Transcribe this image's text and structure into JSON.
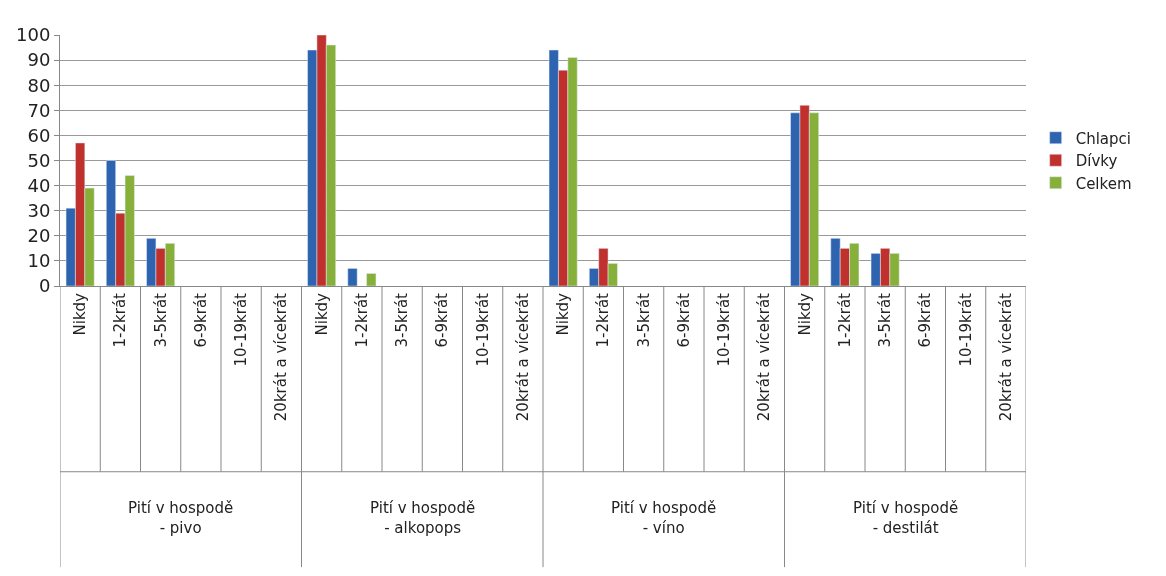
{
  "chart_data": {
    "type": "bar",
    "categories": [
      "Nikdy",
      "1-2krát",
      "3-5krát",
      "6-9krát",
      "10-19krát",
      "20krát a vícekrát",
      "Nikdy",
      "1-2krát",
      "3-5krát",
      "6-9krát",
      "10-19krát",
      "20krát a vícekrát",
      "Nikdy",
      "1-2krát",
      "3-5krát",
      "6-9krát",
      "10-19krát",
      "20krát a vícekrát",
      "Nikdy",
      "1-2krát",
      "3-5krát",
      "6-9krát",
      "10-19krát",
      "20krát a vícekrát"
    ],
    "series": [
      {
        "name": "Chlapci",
        "color": "#2e63b0",
        "values": [
          31,
          50,
          19,
          null,
          null,
          null,
          94,
          7,
          null,
          null,
          null,
          null,
          94,
          7,
          null,
          null,
          null,
          null,
          69,
          19,
          13,
          null,
          null,
          null
        ]
      },
      {
        "name": "Dívky",
        "color": "#c0312e",
        "values": [
          57,
          29,
          15,
          null,
          null,
          null,
          100,
          null,
          null,
          null,
          null,
          null,
          86,
          15,
          null,
          null,
          null,
          null,
          72,
          15,
          15,
          null,
          null,
          null
        ]
      },
      {
        "name": "Celkem",
        "color": "#86b03a",
        "values": [
          39,
          44,
          17,
          null,
          null,
          null,
          96,
          5,
          null,
          null,
          null,
          null,
          91,
          9,
          null,
          null,
          null,
          null,
          69,
          17,
          13,
          null,
          null,
          null
        ]
      }
    ],
    "annotations": [
      "Pití v hospodě\n- pivo",
      "Pití v hospodě\n- alkopops",
      "Pití v hospodě\n- víno",
      "Pití v hospodě\n- destilát"
    ],
    "ylim": [
      0,
      100
    ],
    "yticks": [
      0,
      10,
      20,
      30,
      40,
      50,
      60,
      70,
      80,
      90,
      100
    ],
    "grid": "y",
    "legend": "right"
  }
}
